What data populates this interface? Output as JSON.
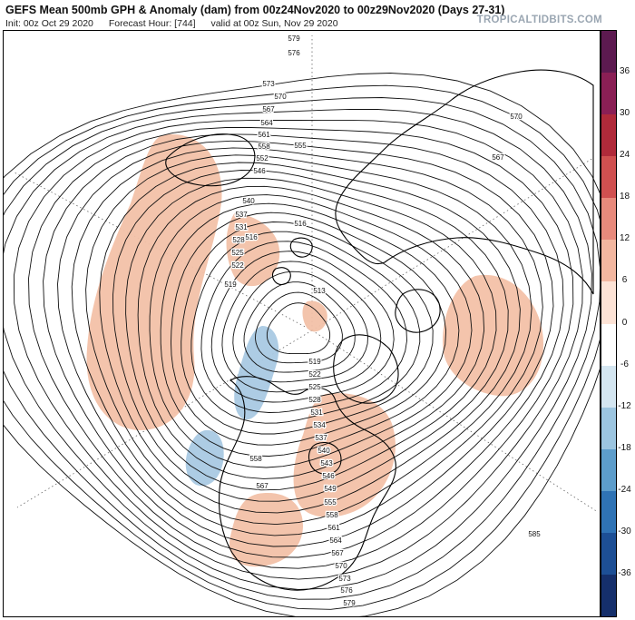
{
  "header": {
    "title": "GEFS Mean 500mb GPH & Anomaly (dam) from 00z24Nov2020 to 00z29Nov2020 (Days 27-31)",
    "init": "Init: 00z Oct 29 2020",
    "forecast_hour": "Forecast Hour: [744]",
    "valid": "valid at 00z Sun, Nov 29 2020",
    "brand": "TROPICALTIDBITS.COM"
  },
  "colorbar": {
    "ticks": [
      "36",
      "30",
      "24",
      "18",
      "12",
      "6",
      "0",
      "-6",
      "-12",
      "-18",
      "-24",
      "-30",
      "-36"
    ],
    "colors": [
      "#5c1a50",
      "#8a1f55",
      "#b02a3a",
      "#d05050",
      "#e88a7c",
      "#f3b7a0",
      "#fde3d6",
      "#ffffff",
      "#d4e6f1",
      "#9cc5e0",
      "#5d9dcb",
      "#2f73b5",
      "#1d4f95",
      "#152f6b"
    ]
  },
  "map": {
    "contour_labels": [
      "585",
      "579",
      "576",
      "573",
      "570",
      "567",
      "564",
      "561",
      "558",
      "555",
      "552",
      "546",
      "540",
      "537",
      "531",
      "528",
      "525",
      "522",
      "519",
      "516",
      "516",
      "513",
      "570",
      "567",
      "519",
      "522",
      "525",
      "528",
      "531",
      "534",
      "537",
      "540",
      "543",
      "546",
      "549",
      "555",
      "558",
      "561",
      "564",
      "567",
      "570",
      "573",
      "576",
      "579",
      "582",
      "585",
      "585",
      "558",
      "567"
    ],
    "anomalies": {
      "positive_color": "#f3c1a8",
      "negative_color": "#a9c9e3"
    }
  }
}
